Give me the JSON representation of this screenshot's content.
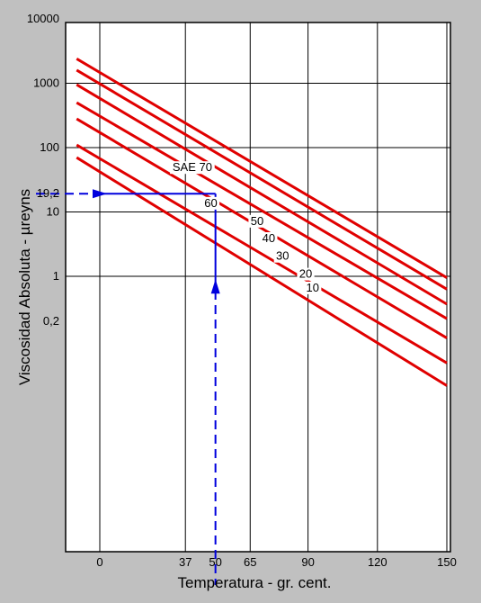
{
  "chart_data": {
    "type": "line",
    "title": "",
    "xlabel": "Temperatura - gr. cent.",
    "ylabel": "Viscosidad Absoluta - µreyns",
    "y_scale": "log",
    "xlim": [
      -10,
      150
    ],
    "ylim": [
      0.2,
      10000
    ],
    "x_ticks": [
      {
        "value": 0,
        "label": "0"
      },
      {
        "value": 37,
        "label": "37"
      },
      {
        "value": 50,
        "label": "50"
      },
      {
        "value": 65,
        "label": "65"
      },
      {
        "value": 90,
        "label": "90"
      },
      {
        "value": 120,
        "label": "120"
      },
      {
        "value": 150,
        "label": "150"
      }
    ],
    "y_ticks": [
      {
        "value": 10000,
        "label": "10000"
      },
      {
        "value": 1000,
        "label": "1000"
      },
      {
        "value": 100,
        "label": "100"
      },
      {
        "value": 19.2,
        "label": "19,2"
      },
      {
        "value": 10,
        "label": "10"
      },
      {
        "value": 1,
        "label": "1"
      },
      {
        "value": 0.2,
        "label": "0,2"
      }
    ],
    "x_gridlines": [
      0,
      37,
      65,
      90,
      120,
      150
    ],
    "y_gridlines": [
      1000,
      100,
      10,
      1
    ],
    "grid": true,
    "line_color": "#e00000",
    "annotation_color": "#0000dd",
    "series": [
      {
        "name": "SAE 70",
        "label": "SAE 70",
        "points": [
          [
            -10,
            2400
          ],
          [
            150,
            0.95
          ]
        ],
        "label_pos": [
          40,
          43
        ]
      },
      {
        "name": "60",
        "label": "60",
        "points": [
          [
            -10,
            1600
          ],
          [
            150,
            0.63
          ]
        ],
        "label_pos": [
          48,
          12
        ]
      },
      {
        "name": "50",
        "label": "50",
        "points": [
          [
            -10,
            950
          ],
          [
            150,
            0.37
          ]
        ],
        "label_pos": [
          68,
          6.3
        ]
      },
      {
        "name": "40",
        "label": "40",
        "points": [
          [
            -10,
            500
          ],
          [
            150,
            0.22
          ]
        ],
        "label_pos": [
          73,
          3.4
        ]
      },
      {
        "name": "30",
        "label": "30",
        "points": [
          [
            -10,
            280
          ],
          [
            150,
            0.11
          ]
        ],
        "label_pos": [
          79,
          1.8
        ]
      },
      {
        "name": "20",
        "label": "20",
        "points": [
          [
            -10,
            110
          ],
          [
            150,
            0.045
          ]
        ],
        "label_pos": [
          89,
          0.95
        ]
      },
      {
        "name": "10",
        "label": "10",
        "points": [
          [
            -10,
            70
          ],
          [
            150,
            0.02
          ]
        ],
        "label_pos": [
          92,
          0.58
        ]
      }
    ],
    "annotations": [
      {
        "type": "dashed-arrow",
        "from": [
          -10,
          19.2
        ],
        "to": [
          0,
          19.2
        ]
      },
      {
        "type": "solid-line",
        "from": [
          0,
          19.2
        ],
        "to": [
          50,
          19.2
        ]
      },
      {
        "type": "solid-line",
        "from": [
          50,
          19.2
        ],
        "to": [
          50,
          1
        ]
      },
      {
        "type": "dashed-line",
        "from": [
          50,
          1
        ],
        "to": [
          50,
          0.2
        ]
      },
      {
        "type": "arrow-up",
        "at": [
          50,
          0.9
        ]
      }
    ]
  }
}
